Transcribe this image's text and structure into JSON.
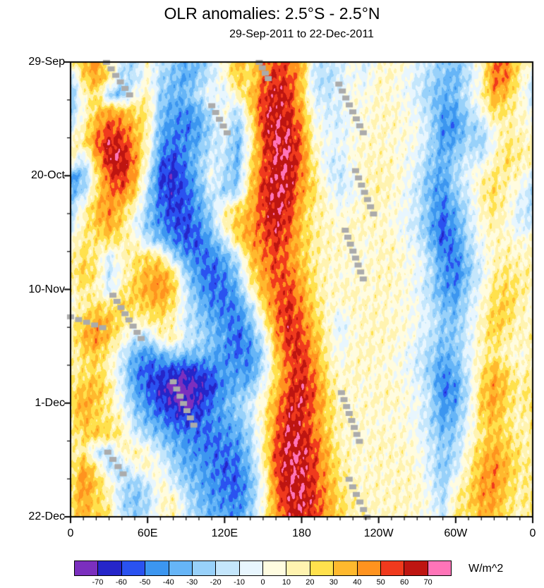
{
  "chart_data": {
    "type": "heatmap",
    "title": "OLR anomalies: 2.5°S - 2.5°N",
    "subtitle": "29-Sep-2011 to 22-Dec-2011",
    "description": "Time-longitude (Hovmoller) diagram of OLR anomalies averaged 2.5S-2.5N, 29-Sep-2011 (top) to 22-Dec-2011 (bottom), longitude 0-360E left to right",
    "x_axis": {
      "tick_labels": [
        "0",
        "60E",
        "120E",
        "180",
        "120W",
        "60W",
        "0"
      ],
      "tick_positions_deg": [
        0,
        60,
        120,
        180,
        240,
        300,
        360
      ],
      "minor_tick_step_deg": 10,
      "range_deg": [
        0,
        360
      ]
    },
    "y_axis": {
      "tick_labels": [
        "29-Sep",
        "20-Oct",
        "10-Nov",
        "1-Dec",
        "22-Dec"
      ],
      "tick_positions_day": [
        0,
        21,
        42,
        63,
        84
      ],
      "minor_tick_step_day": 7,
      "start_date": "29-Sep-2011",
      "end_date": "22-Dec-2011",
      "total_days": 84
    },
    "colorbar": {
      "units": "W/m^2",
      "levels": [
        -70,
        -60,
        -50,
        -40,
        -30,
        -20,
        -10,
        0,
        10,
        20,
        30,
        40,
        50,
        60,
        70
      ],
      "colors": [
        "#7B2FBE",
        "#2525C9",
        "#2A52F0",
        "#3C96F0",
        "#66B5F7",
        "#98D1FA",
        "#C4E6FC",
        "#E8F6FE",
        "#FFFCE0",
        "#FFF3B0",
        "#FFE14D",
        "#FFB92E",
        "#FF931F",
        "#F03A1D",
        "#BE1511",
        "#FF74B8"
      ]
    },
    "gap_color": "#ABABAB",
    "field": {
      "units": "W/m^2",
      "lon_start_deg": 0,
      "lon_step_deg": 10,
      "day_start": 0,
      "day_step_days": 3,
      "values": [
        [
          10,
          35,
          45,
          15,
          -15,
          -20,
          10,
          -15,
          -25,
          -35,
          -30,
          -15,
          10,
          35,
          25,
          45,
          55,
          50,
          40,
          -10,
          -15,
          -10,
          5,
          -10,
          5,
          10,
          5,
          -5,
          -15,
          -25,
          -30,
          -15,
          10,
          45,
          50,
          20,
          10
        ],
        [
          -20,
          25,
          40,
          20,
          -20,
          -15,
          5,
          -20,
          -30,
          -40,
          -25,
          -10,
          5,
          30,
          20,
          50,
          60,
          55,
          35,
          -15,
          -20,
          -10,
          0,
          -5,
          10,
          10,
          0,
          -10,
          -20,
          -30,
          -35,
          -15,
          5,
          50,
          45,
          15,
          -10
        ],
        [
          -30,
          10,
          25,
          -25,
          -30,
          0,
          15,
          -25,
          -35,
          -30,
          -15,
          0,
          -10,
          15,
          30,
          55,
          65,
          60,
          30,
          -10,
          -15,
          -5,
          5,
          0,
          10,
          5,
          0,
          -10,
          -25,
          -35,
          -30,
          -10,
          10,
          40,
          30,
          10,
          -15
        ],
        [
          -25,
          5,
          30,
          40,
          35,
          25,
          20,
          -30,
          -40,
          -45,
          -35,
          -15,
          5,
          -20,
          25,
          60,
          65,
          60,
          40,
          0,
          -10,
          -10,
          5,
          5,
          10,
          10,
          5,
          -5,
          -20,
          -40,
          -40,
          -20,
          0,
          25,
          20,
          10,
          0
        ],
        [
          -10,
          15,
          40,
          55,
          50,
          35,
          15,
          -35,
          -45,
          -50,
          -40,
          -20,
          0,
          -30,
          15,
          60,
          68,
          65,
          45,
          5,
          -5,
          -10,
          0,
          5,
          10,
          10,
          5,
          0,
          -15,
          -45,
          -45,
          -25,
          -20,
          5,
          15,
          10,
          5
        ],
        [
          10,
          20,
          50,
          65,
          60,
          40,
          10,
          -40,
          -50,
          -45,
          -35,
          -15,
          -10,
          -35,
          10,
          55,
          68,
          68,
          50,
          10,
          0,
          -5,
          5,
          10,
          10,
          5,
          5,
          0,
          -20,
          -40,
          -35,
          -20,
          -25,
          0,
          20,
          15,
          10
        ],
        [
          15,
          -15,
          35,
          65,
          68,
          45,
          5,
          -50,
          -60,
          -45,
          -25,
          -10,
          -15,
          -35,
          20,
          50,
          68,
          68,
          50,
          15,
          -10,
          -10,
          5,
          10,
          10,
          10,
          0,
          -5,
          -25,
          -35,
          -25,
          -10,
          -10,
          10,
          25,
          15,
          15
        ],
        [
          -45,
          -30,
          20,
          55,
          60,
          40,
          -10,
          -60,
          -65,
          -50,
          -30,
          0,
          -20,
          -30,
          25,
          55,
          68,
          68,
          45,
          20,
          -5,
          -15,
          0,
          10,
          15,
          10,
          5,
          -10,
          -30,
          -40,
          -20,
          -5,
          10,
          20,
          15,
          10,
          -10
        ],
        [
          -35,
          -20,
          25,
          45,
          50,
          30,
          -20,
          -55,
          -60,
          -55,
          -35,
          -10,
          -25,
          -20,
          30,
          60,
          68,
          65,
          40,
          25,
          5,
          -10,
          -5,
          10,
          15,
          10,
          0,
          -15,
          -35,
          -45,
          -25,
          -10,
          15,
          25,
          10,
          0,
          -20
        ],
        [
          -20,
          10,
          35,
          45,
          30,
          10,
          -25,
          -50,
          -60,
          -55,
          -40,
          -20,
          10,
          25,
          35,
          55,
          68,
          60,
          35,
          15,
          10,
          0,
          5,
          10,
          10,
          5,
          0,
          -10,
          -30,
          -50,
          -35,
          -15,
          10,
          20,
          10,
          -10,
          -15
        ],
        [
          -15,
          15,
          30,
          40,
          25,
          -5,
          -30,
          -45,
          -55,
          -60,
          -45,
          -25,
          15,
          30,
          40,
          55,
          65,
          55,
          30,
          15,
          10,
          5,
          10,
          10,
          10,
          5,
          -5,
          -15,
          -35,
          -55,
          -40,
          -15,
          5,
          15,
          5,
          -10,
          -10
        ],
        [
          5,
          20,
          20,
          25,
          15,
          10,
          -15,
          -30,
          -45,
          -55,
          -55,
          -35,
          -15,
          25,
          40,
          50,
          60,
          50,
          30,
          20,
          10,
          10,
          10,
          5,
          10,
          10,
          0,
          -10,
          -30,
          -55,
          -45,
          -20,
          0,
          10,
          10,
          5,
          10
        ],
        [
          10,
          25,
          15,
          -10,
          10,
          20,
          25,
          20,
          -20,
          -40,
          -50,
          -50,
          -35,
          -15,
          30,
          45,
          55,
          45,
          30,
          15,
          10,
          10,
          5,
          5,
          10,
          10,
          5,
          0,
          -20,
          -45,
          -50,
          -25,
          -5,
          10,
          15,
          10,
          10
        ],
        [
          15,
          30,
          20,
          -15,
          5,
          25,
          35,
          40,
          25,
          -25,
          -45,
          -55,
          -45,
          -25,
          20,
          40,
          55,
          50,
          35,
          20,
          10,
          5,
          5,
          10,
          10,
          10,
          5,
          0,
          -15,
          -40,
          -50,
          -30,
          -10,
          15,
          20,
          15,
          15
        ],
        [
          10,
          20,
          10,
          -10,
          15,
          30,
          40,
          45,
          30,
          -15,
          -40,
          -50,
          -50,
          -35,
          10,
          35,
          50,
          55,
          40,
          20,
          10,
          10,
          10,
          5,
          10,
          10,
          5,
          -5,
          -20,
          -40,
          -45,
          -20,
          0,
          20,
          25,
          20,
          10
        ],
        [
          5,
          15,
          25,
          20,
          30,
          25,
          30,
          35,
          20,
          -10,
          -30,
          -45,
          -50,
          -45,
          -20,
          25,
          50,
          60,
          45,
          25,
          10,
          5,
          10,
          10,
          10,
          5,
          5,
          0,
          -15,
          -30,
          -35,
          -15,
          5,
          25,
          30,
          15,
          5
        ],
        [
          10,
          30,
          40,
          35,
          20,
          10,
          15,
          20,
          10,
          -15,
          -25,
          -35,
          -45,
          -50,
          -30,
          10,
          45,
          60,
          50,
          30,
          10,
          -10,
          5,
          10,
          10,
          10,
          5,
          0,
          -10,
          -25,
          -30,
          -10,
          10,
          30,
          25,
          10,
          10
        ],
        [
          15,
          35,
          45,
          30,
          10,
          -15,
          -20,
          10,
          15,
          -10,
          -20,
          -30,
          -40,
          -55,
          -40,
          -10,
          40,
          60,
          55,
          35,
          15,
          -5,
          5,
          10,
          10,
          10,
          5,
          -5,
          -15,
          -30,
          -25,
          -10,
          15,
          25,
          15,
          10,
          15
        ],
        [
          10,
          25,
          30,
          15,
          -10,
          -35,
          -45,
          -35,
          -25,
          -30,
          -30,
          -35,
          -45,
          -50,
          -45,
          -20,
          30,
          55,
          60,
          40,
          15,
          0,
          10,
          10,
          10,
          5,
          0,
          -10,
          -20,
          -35,
          -30,
          -5,
          10,
          20,
          10,
          5,
          10
        ],
        [
          15,
          20,
          25,
          10,
          -15,
          -45,
          -55,
          -55,
          -60,
          -65,
          -60,
          -50,
          -40,
          -40,
          -45,
          -15,
          25,
          50,
          60,
          45,
          20,
          5,
          10,
          10,
          5,
          5,
          0,
          -10,
          -25,
          -45,
          -35,
          -10,
          20,
          35,
          25,
          10,
          15
        ],
        [
          20,
          30,
          35,
          20,
          -10,
          -40,
          -55,
          -65,
          -75,
          -75,
          -68,
          -60,
          -45,
          -35,
          -30,
          0,
          30,
          55,
          65,
          50,
          25,
          10,
          10,
          5,
          10,
          10,
          5,
          -5,
          -20,
          -50,
          -45,
          -15,
          25,
          40,
          30,
          15,
          20
        ],
        [
          25,
          40,
          30,
          15,
          -5,
          -30,
          -45,
          -60,
          -68,
          -75,
          -65,
          -50,
          -35,
          -25,
          -10,
          10,
          40,
          60,
          65,
          50,
          30,
          10,
          5,
          10,
          10,
          10,
          5,
          0,
          -15,
          -45,
          -40,
          -10,
          30,
          40,
          25,
          15,
          25
        ],
        [
          20,
          35,
          25,
          20,
          10,
          -20,
          -35,
          -45,
          -55,
          -60,
          -55,
          -45,
          -40,
          -30,
          -15,
          15,
          45,
          65,
          60,
          45,
          25,
          15,
          10,
          10,
          5,
          5,
          5,
          -5,
          -20,
          -40,
          -30,
          -5,
          25,
          35,
          20,
          10,
          20
        ],
        [
          15,
          25,
          30,
          25,
          15,
          -10,
          -20,
          -30,
          -40,
          -45,
          -50,
          -50,
          -45,
          -40,
          -20,
          10,
          50,
          68,
          65,
          50,
          30,
          10,
          5,
          5,
          10,
          10,
          5,
          0,
          -15,
          -30,
          -25,
          0,
          20,
          30,
          25,
          15,
          15
        ],
        [
          10,
          20,
          -15,
          -20,
          10,
          15,
          5,
          -15,
          -30,
          -40,
          -45,
          -50,
          -50,
          -45,
          -25,
          15,
          55,
          68,
          68,
          55,
          35,
          15,
          10,
          10,
          10,
          10,
          10,
          5,
          -10,
          -25,
          -20,
          10,
          30,
          40,
          30,
          20,
          10
        ],
        [
          15,
          40,
          20,
          -15,
          -20,
          0,
          10,
          0,
          -20,
          -35,
          -40,
          -45,
          -55,
          -50,
          -30,
          10,
          55,
          68,
          68,
          55,
          35,
          20,
          10,
          5,
          10,
          10,
          10,
          5,
          -10,
          -30,
          -15,
          15,
          35,
          45,
          35,
          20,
          15
        ],
        [
          20,
          45,
          30,
          10,
          -15,
          -25,
          -15,
          10,
          -10,
          -25,
          -35,
          -45,
          -50,
          -55,
          -35,
          0,
          50,
          68,
          68,
          55,
          40,
          20,
          10,
          10,
          10,
          10,
          10,
          10,
          -5,
          -25,
          5,
          20,
          40,
          45,
          30,
          15,
          20
        ],
        [
          25,
          40,
          25,
          15,
          -20,
          -30,
          -20,
          5,
          15,
          -15,
          -30,
          -40,
          -45,
          -50,
          -30,
          5,
          45,
          65,
          68,
          60,
          40,
          25,
          15,
          10,
          10,
          10,
          10,
          10,
          0,
          -20,
          15,
          25,
          40,
          40,
          25,
          15,
          25
        ],
        [
          20,
          35,
          30,
          20,
          -15,
          -25,
          -15,
          10,
          10,
          -10,
          -25,
          -35,
          -40,
          -45,
          -25,
          10,
          40,
          60,
          65,
          55,
          40,
          25,
          15,
          10,
          10,
          10,
          10,
          5,
          0,
          -15,
          20,
          20,
          35,
          35,
          20,
          10,
          20
        ]
      ]
    },
    "data_gap_marks": [
      [
        28,
        0,
        46,
        6
      ],
      [
        147,
        0,
        154,
        3
      ],
      [
        209,
        4,
        228,
        13
      ],
      [
        110,
        8,
        122,
        13
      ],
      [
        222,
        20,
        236,
        28
      ],
      [
        214,
        31,
        228,
        40
      ],
      [
        33,
        43,
        55,
        51
      ],
      [
        0,
        47,
        25,
        49
      ],
      [
        80,
        59,
        96,
        67
      ],
      [
        211,
        61,
        225,
        70
      ],
      [
        29,
        72,
        41,
        76
      ],
      [
        217,
        77,
        231,
        84
      ]
    ]
  }
}
